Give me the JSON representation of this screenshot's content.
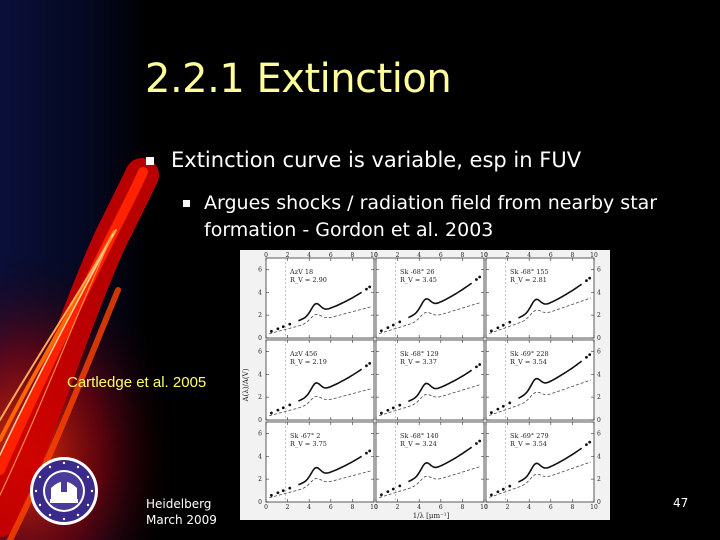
{
  "slide": {
    "title": "2.2.1 Extinction",
    "bullet1": "Extinction curve is variable, esp in FUV",
    "bullet2": "Argues shocks / radiation field from nearby star formation - Gordon et al. 2003",
    "credit": "Cartledge et al. 2005",
    "footer_line1": "Heidelberg",
    "footer_line2": "March 2009",
    "page_number": "47"
  },
  "figure": {
    "panels": [
      {
        "star": "AzV 18",
        "rv": "R_V = 2.90"
      },
      {
        "star": "Sk -68° 26",
        "rv": "R_V = 3.45"
      },
      {
        "star": "Sk -68° 155",
        "rv": "R_V = 2.81"
      },
      {
        "star": "AzV 456",
        "rv": "R_V = 2.19"
      },
      {
        "star": "Sk -68° 129",
        "rv": "R_V = 3.37"
      },
      {
        "star": "Sk -69° 228",
        "rv": "R_V = 3.54"
      },
      {
        "star": "Sk -67° 2",
        "rv": "R_V = 3.75"
      },
      {
        "star": "Sk -68° 140",
        "rv": "R_V = 3.24"
      },
      {
        "star": "Sk -69° 279",
        "rv": "R_V = 3.54"
      }
    ],
    "x_ticks": [
      "0",
      "2",
      "4",
      "6",
      "8",
      "10"
    ],
    "y_ticks": [
      "0",
      "2",
      "4",
      "6"
    ],
    "xlabel": "1/λ [μm⁻¹]",
    "ylabel": "A(λ)/A(V)"
  },
  "colors": {
    "background": "#000000",
    "title": "#ffff99",
    "credit": "#ffff66",
    "figure_bg": "#f2f2f2"
  }
}
